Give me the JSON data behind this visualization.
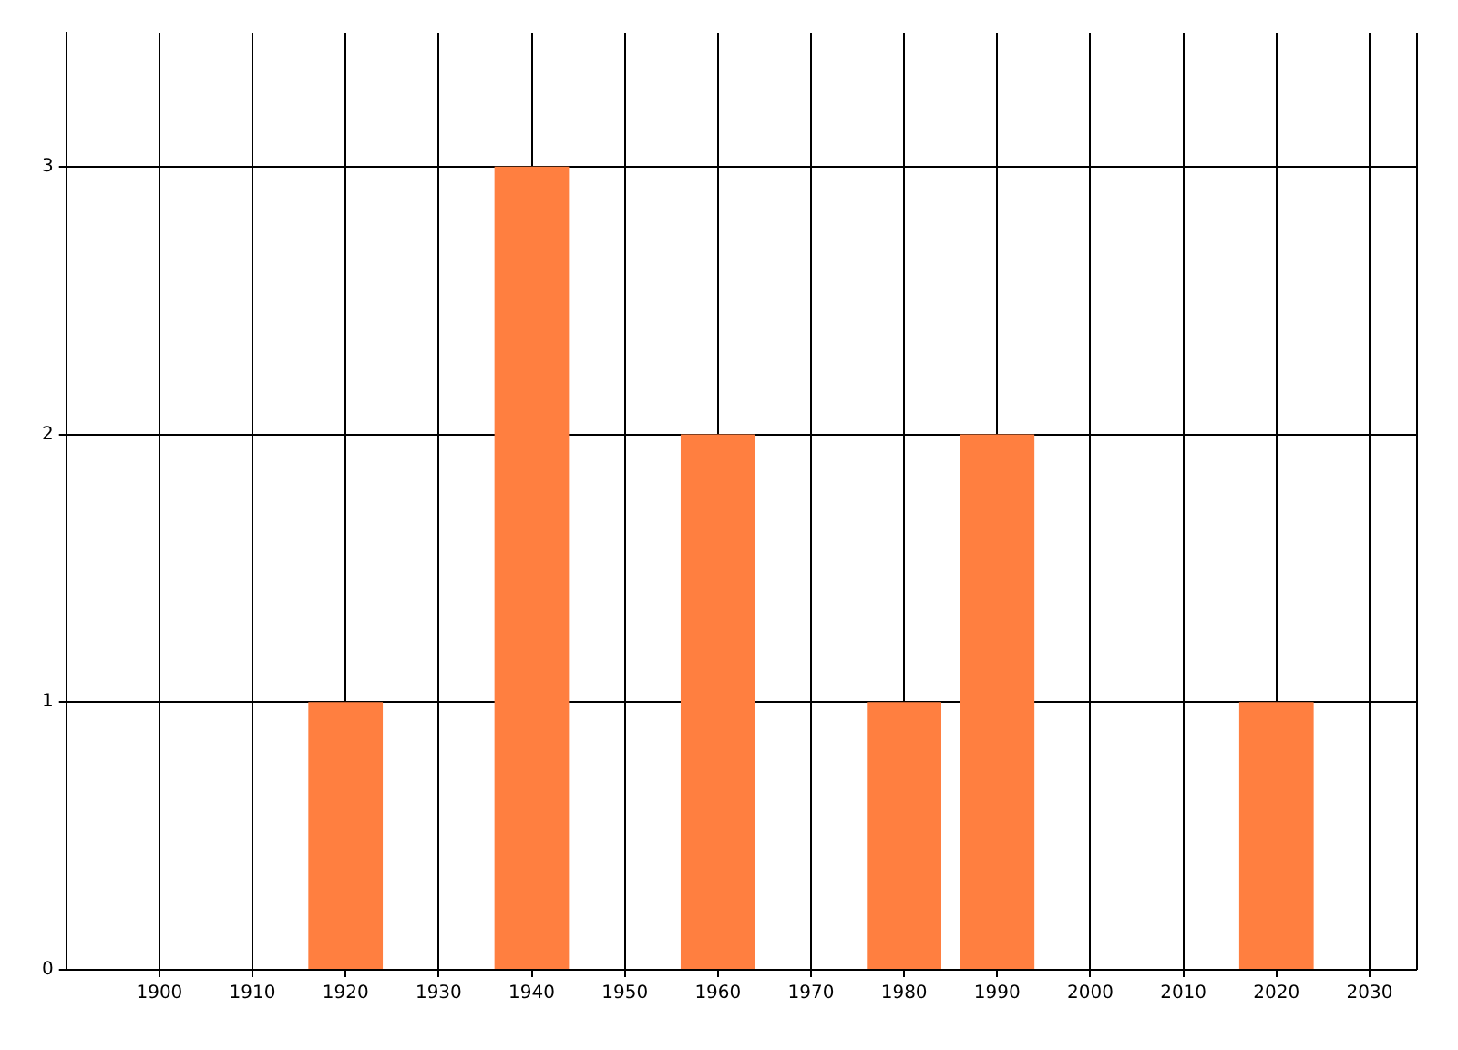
{
  "chart_data": {
    "type": "bar",
    "x": [
      1920,
      1940,
      1960,
      1980,
      1990,
      2020
    ],
    "values": [
      1,
      3,
      2,
      1,
      2,
      1
    ],
    "color": "#ff7f40",
    "xlim": [
      1890,
      2035
    ],
    "xticks": [
      1900,
      1910,
      1920,
      1930,
      1940,
      1950,
      1960,
      1970,
      1980,
      1990,
      2000,
      2010,
      2020,
      2030
    ],
    "ylim": [
      0,
      3.5
    ],
    "yticks": [
      0,
      1,
      2,
      3
    ],
    "grid": true
  }
}
